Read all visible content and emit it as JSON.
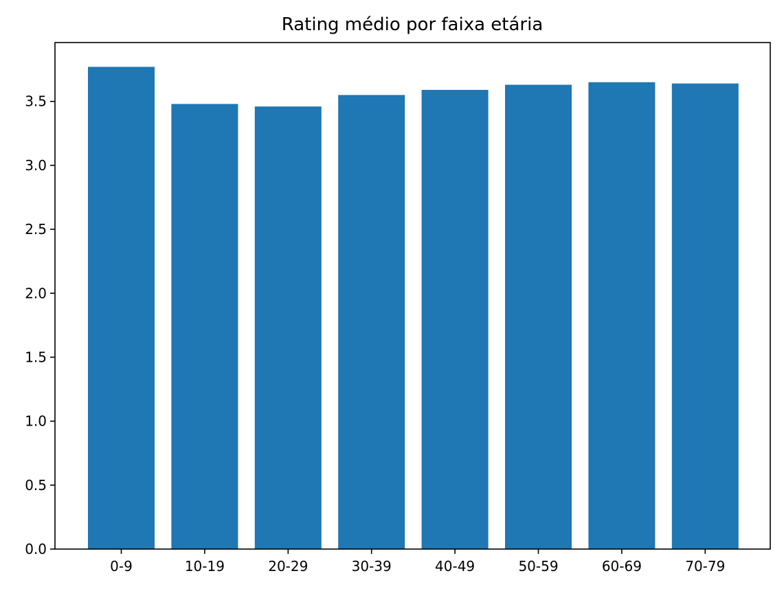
{
  "chart_data": {
    "type": "bar",
    "title": "Rating médio por faixa etária",
    "xlabel": "",
    "ylabel": "",
    "categories": [
      "0-9",
      "10-19",
      "20-29",
      "30-39",
      "40-49",
      "50-59",
      "60-69",
      "70-79"
    ],
    "values": [
      3.77,
      3.48,
      3.46,
      3.55,
      3.59,
      3.63,
      3.65,
      3.64
    ],
    "ylim": [
      0,
      3.96
    ],
    "yticks": [
      "0.0",
      "0.5",
      "1.0",
      "1.5",
      "2.0",
      "2.5",
      "3.0",
      "3.5"
    ],
    "bar_color": "#1f77b4",
    "grid": false,
    "legend": "none"
  }
}
